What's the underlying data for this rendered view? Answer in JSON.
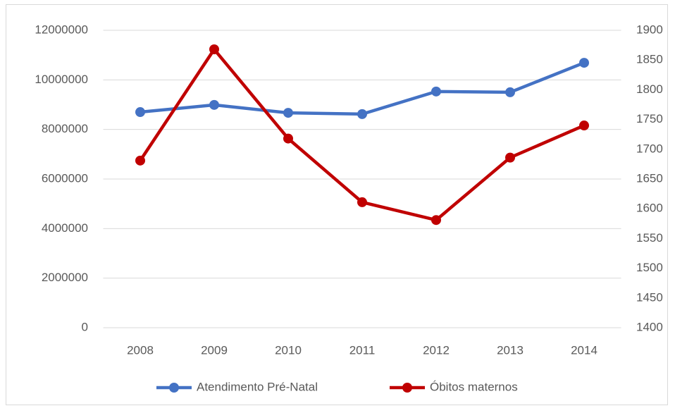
{
  "chart_data": {
    "type": "line",
    "categories": [
      "2008",
      "2009",
      "2010",
      "2011",
      "2012",
      "2013",
      "2014"
    ],
    "series": [
      {
        "name": "Atendimento Pré-Natal",
        "color": "#4472c4",
        "values": [
          8700000,
          8990000,
          8670000,
          8620000,
          9530000,
          9500000,
          10690000
        ]
      },
      {
        "name": "Óbitos maternos",
        "color": "#c00000",
        "axis": "y2",
        "values": [
          1681,
          1868,
          1718,
          1611,
          1581,
          1686,
          1740
        ]
      }
    ],
    "ylim": [
      0,
      12000000
    ],
    "yticks": [
      0,
      2000000,
      4000000,
      6000000,
      8000000,
      10000000,
      12000000
    ],
    "y2lim": [
      1400,
      1900
    ],
    "y2ticks": [
      1400,
      1450,
      1500,
      1550,
      1600,
      1650,
      1700,
      1750,
      1800,
      1850,
      1900
    ],
    "grid": true,
    "legend": "bottom"
  }
}
